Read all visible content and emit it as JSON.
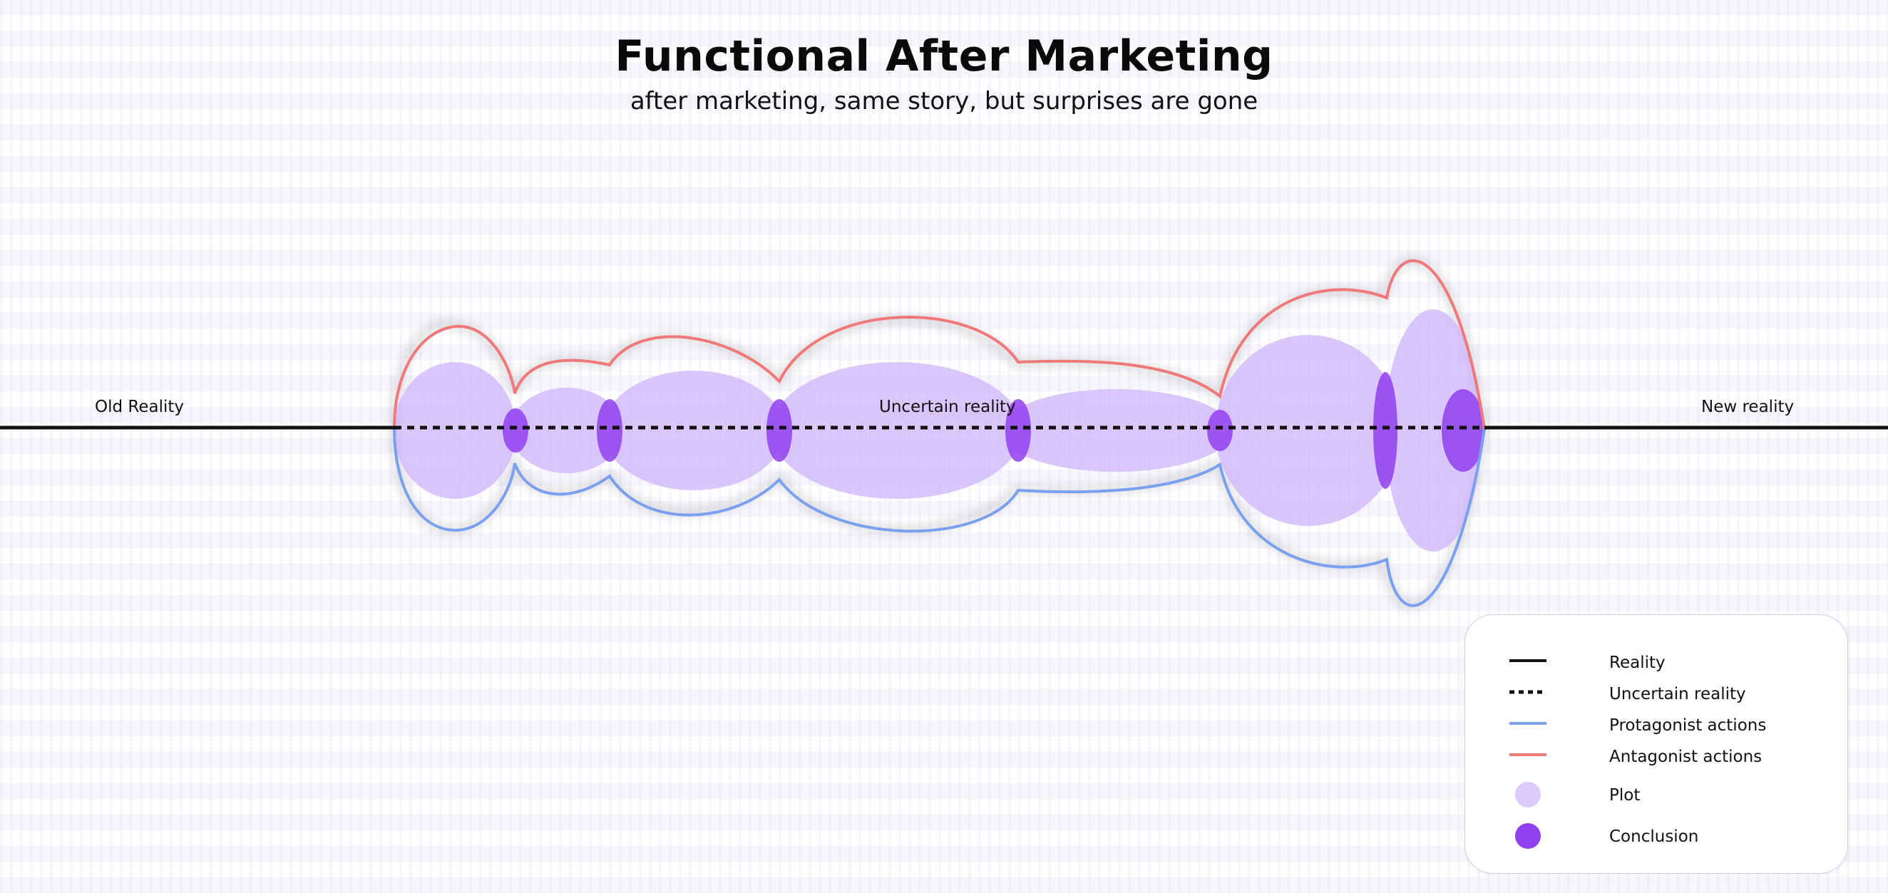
{
  "header": {
    "title": "Functional After Marketing",
    "subtitle": "after marketing, same story, but surprises are gone"
  },
  "labels": {
    "old_reality": "Old Reality",
    "uncertain_reality": "Uncertain reality",
    "new_reality": "New reality"
  },
  "legend": {
    "items": [
      {
        "label": "Reality",
        "symbol": "solid-line",
        "color": "#111111"
      },
      {
        "label": "Uncertain reality",
        "symbol": "dotted-line",
        "color": "#111111"
      },
      {
        "label": "Protagonist actions",
        "symbol": "line",
        "color": "#7aa0f0"
      },
      {
        "label": "Antagonist actions",
        "symbol": "line",
        "color": "#f07878"
      },
      {
        "label": "Plot",
        "symbol": "circle",
        "color": "#dccafb"
      },
      {
        "label": "Conclusion",
        "symbol": "circle",
        "color": "#9040ee"
      }
    ]
  },
  "colors": {
    "reality": "#111111",
    "protagonist": "#7aa0f0",
    "antagonist": "#f07878",
    "plot": "#cfb4fb",
    "conclusion": "#9040ee"
  }
}
